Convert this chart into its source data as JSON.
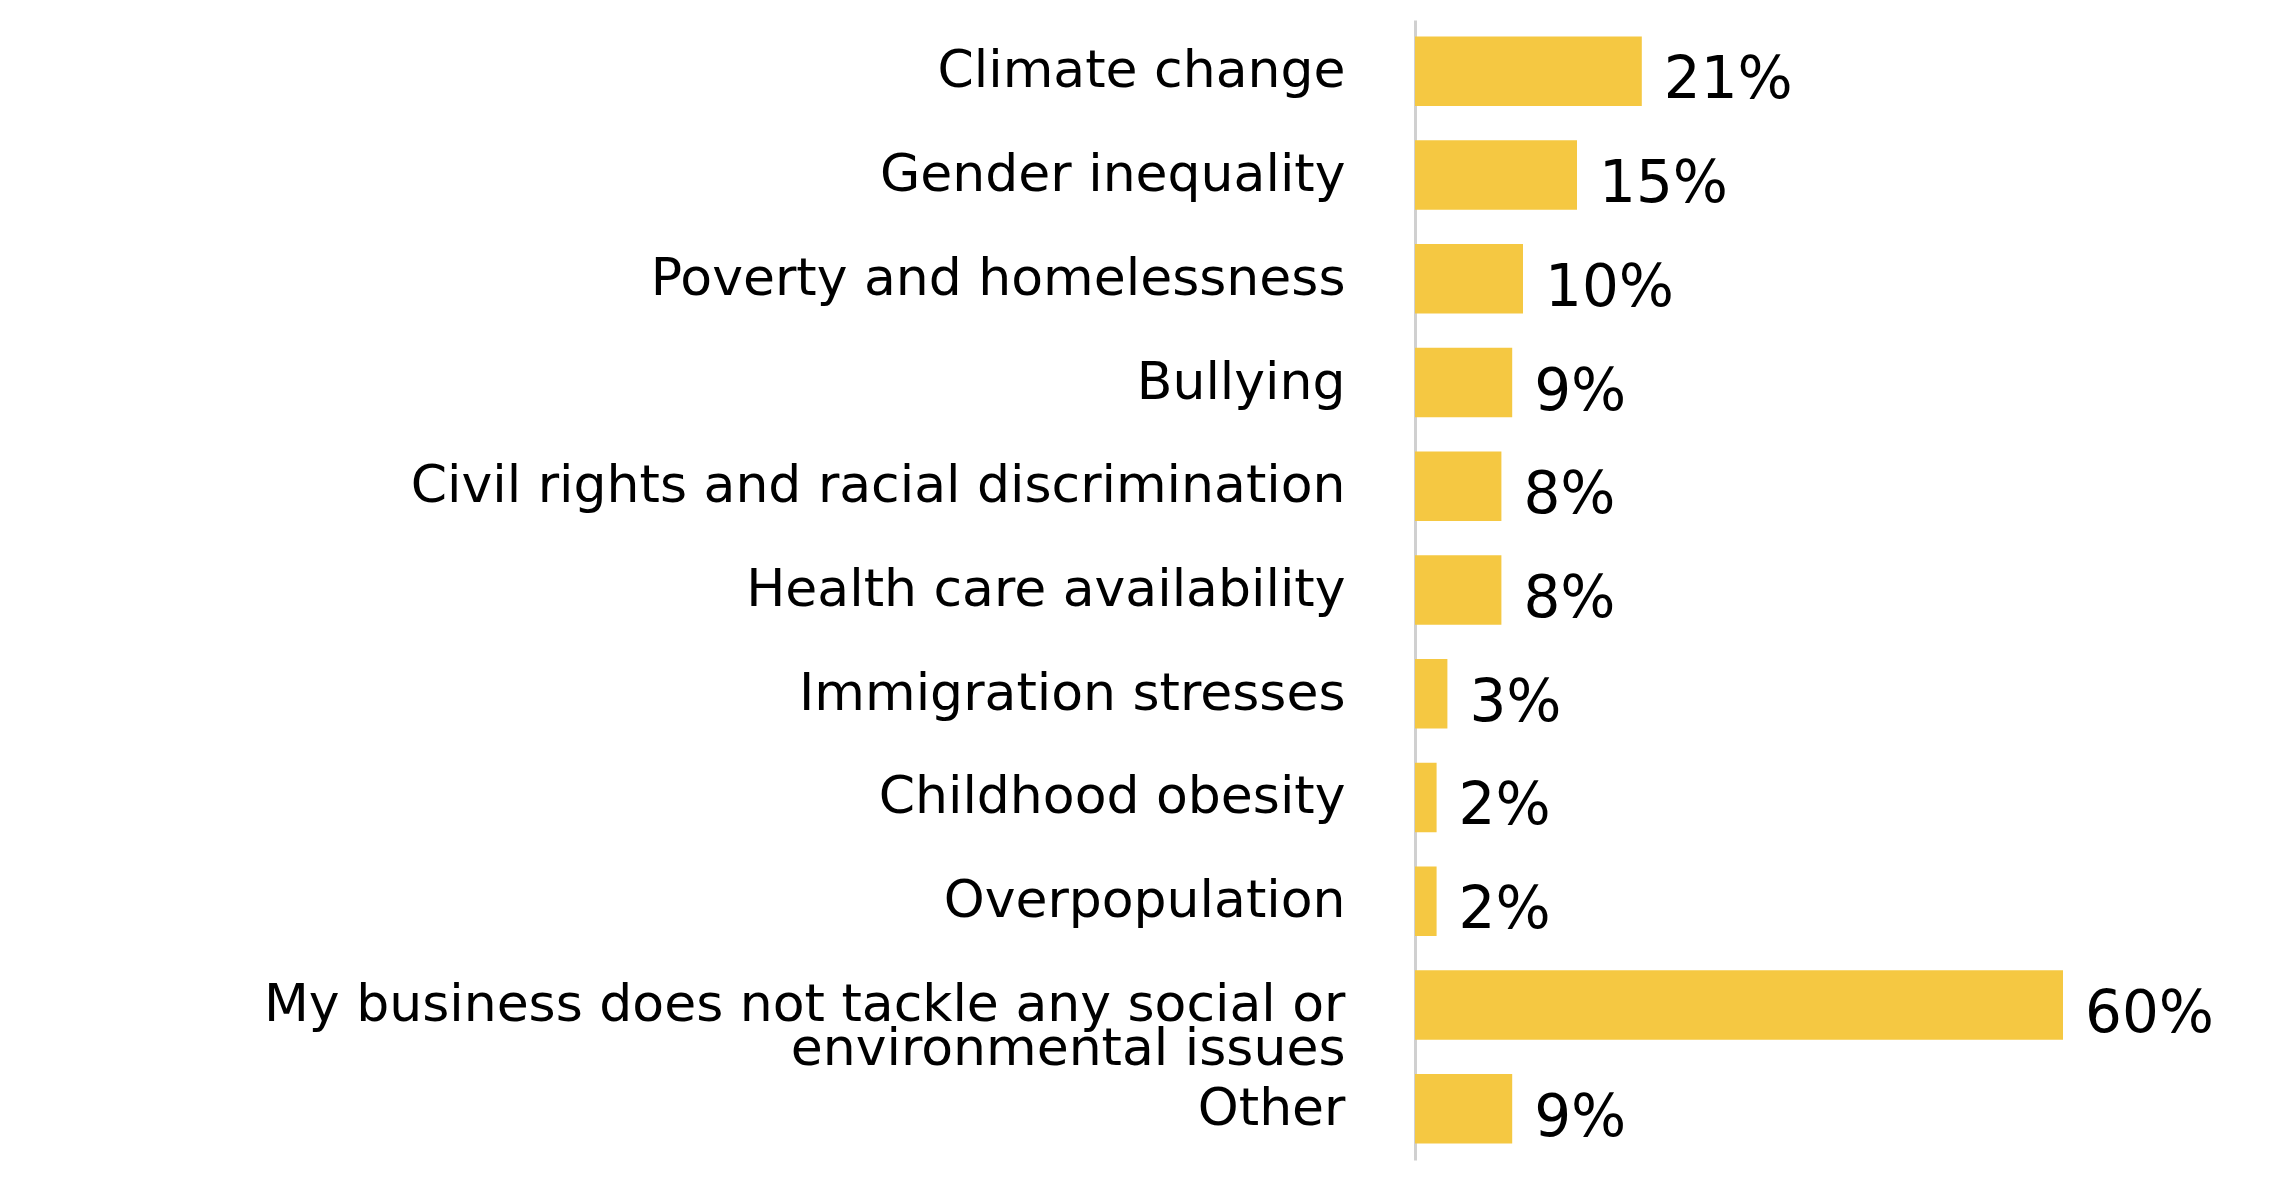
{
  "chart_data": {
    "type": "bar",
    "orientation": "horizontal",
    "categories": [
      "Climate change",
      "Gender inequality",
      "Poverty and homelessness",
      "Bullying",
      "Civil rights and racial discrimination",
      "Health care availability",
      "Immigration stresses",
      "Childhood obesity",
      "Overpopulation",
      "My business does not tackle any social or environmental issues",
      "Other"
    ],
    "values": [
      21,
      15,
      10,
      9,
      8,
      8,
      3,
      2,
      2,
      60,
      9
    ],
    "value_labels": [
      "21%",
      "15%",
      "10%",
      "9%",
      "8%",
      "8%",
      "3%",
      "2%",
      "2%",
      "60%",
      "9%"
    ],
    "color": "#f5c842",
    "grid": false
  }
}
